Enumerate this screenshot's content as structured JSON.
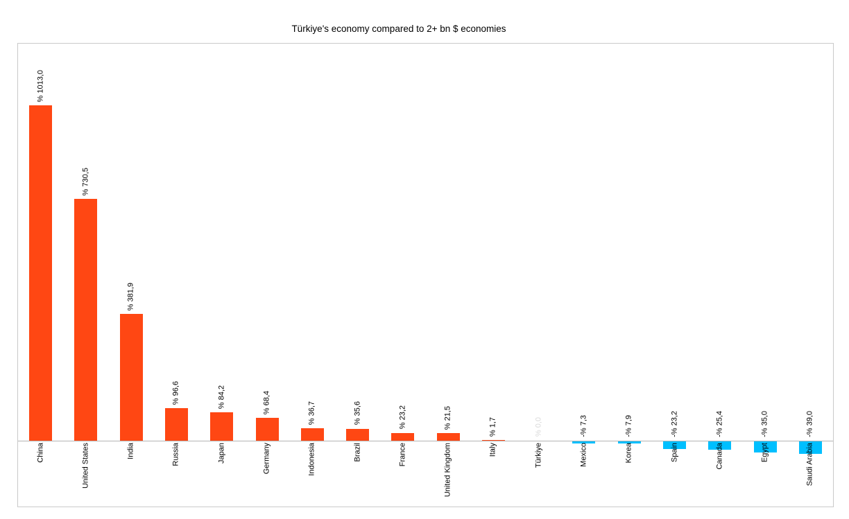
{
  "chart_data": {
    "type": "bar",
    "title": "Türkiye's economy compared to 2+ bn $ economies",
    "categories": [
      "China",
      "United States",
      "India",
      "Russia",
      "Japan",
      "Germany",
      "Indonesia",
      "Brazil",
      "France",
      "United Kingdom",
      "Italy",
      "Türkiye",
      "Mexico",
      "Korea",
      "Spain",
      "Canada",
      "Egypt",
      "Saudi Arabia"
    ],
    "values": [
      1013.0,
      730.5,
      381.9,
      96.6,
      84.2,
      68.4,
      36.7,
      35.6,
      23.2,
      21.5,
      1.7,
      0.0,
      -7.3,
      -7.9,
      -23.2,
      -25.4,
      -35.0,
      -39.0
    ],
    "value_labels": [
      "% 1013,0",
      "% 730,5",
      "% 381,9",
      "% 96,6",
      "% 84,2",
      "% 68,4",
      "% 36,7",
      "% 35,6",
      "% 23,2",
      "% 21,5",
      "% 1,7",
      "% 0,0",
      "-% 7,3",
      "-% 7,9",
      "-% 23,2",
      "-% 25,4",
      "-% 35,0",
      "-% 39,0"
    ],
    "xlabel": "",
    "ylabel": "",
    "ylim": [
      -200,
      1200
    ],
    "grid": false,
    "legend": "none",
    "colors": {
      "positive_bar": "#FF4713",
      "negative_bar": "#00BFFF",
      "zero_value_label": "#d9d9d9",
      "value_label": "#000000",
      "category_label": "#000000",
      "axis_line": "#b3b3b3",
      "plot_border": "#c9c9c9"
    }
  }
}
